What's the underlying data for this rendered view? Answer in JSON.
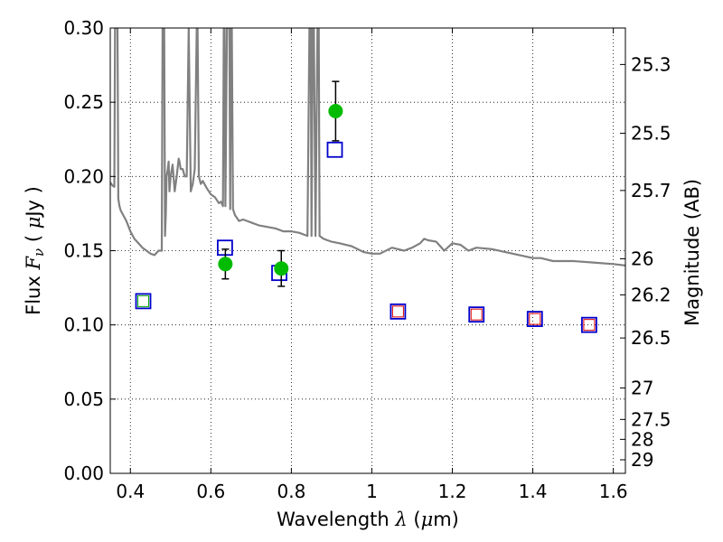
{
  "chart_data": {
    "type": "scatter",
    "xlabel": "Wavelength  λ (μm)",
    "ylabel": "Flux  F_ν  ( μJy )",
    "y2label": "Magnitude (AB)",
    "xlim": [
      0.35,
      1.63
    ],
    "ylim": [
      0.0,
      0.3
    ],
    "grid": true,
    "x_ticks": [
      0.4,
      0.6,
      0.8,
      1.0,
      1.2,
      1.4,
      1.6
    ],
    "x_tick_labels": [
      "0.4",
      "0.6",
      "0.8",
      "1",
      "1.2",
      "1.4",
      "1.6"
    ],
    "y_ticks": [
      0.0,
      0.05,
      0.1,
      0.15,
      0.2,
      0.25,
      0.3
    ],
    "y_tick_labels": [
      "0.00",
      "0.05",
      "0.10",
      "0.15",
      "0.20",
      "0.25",
      "0.30"
    ],
    "y2_ticks": [
      25.3,
      25.5,
      25.7,
      26,
      26.2,
      26.5,
      27,
      27.5,
      28,
      29
    ],
    "y2_tick_labels": [
      "25.3",
      "25.5",
      "25.7",
      "26",
      "26.2",
      "26.5",
      "27",
      "27.5",
      "28",
      "29"
    ],
    "colors": {
      "sed_model": "#808080",
      "observed": "#00bb00",
      "model_box": "#0000cc",
      "box_inner_green": "#00aa00",
      "box_inner_red": "#dd0000",
      "errorbar": "#000000"
    },
    "series": [
      {
        "kind": "line",
        "x": [
          0.35,
          0.355,
          0.36,
          0.362,
          0.364,
          0.366,
          0.368,
          0.37,
          0.373,
          0.376,
          0.38,
          0.39,
          0.4,
          0.41,
          0.42,
          0.43,
          0.44,
          0.45,
          0.46,
          0.47,
          0.478,
          0.48,
          0.484,
          0.486,
          0.488,
          0.49,
          0.493,
          0.495,
          0.497,
          0.5,
          0.505,
          0.51,
          0.515,
          0.52,
          0.522,
          0.525,
          0.53,
          0.535,
          0.54,
          0.545,
          0.55,
          0.555,
          0.56,
          0.565,
          0.567,
          0.57,
          0.575,
          0.58,
          0.59,
          0.6,
          0.61,
          0.62,
          0.625,
          0.63,
          0.632,
          0.634,
          0.636,
          0.64,
          0.642,
          0.644,
          0.646,
          0.648,
          0.65,
          0.652,
          0.655,
          0.66,
          0.67,
          0.68,
          0.69,
          0.7,
          0.72,
          0.74,
          0.76,
          0.78,
          0.8,
          0.82,
          0.84,
          0.845,
          0.848,
          0.85,
          0.853,
          0.856,
          0.86,
          0.865,
          0.868,
          0.87,
          0.88,
          0.9,
          0.92,
          0.95,
          0.98,
          1.0,
          1.02,
          1.05,
          1.08,
          1.1,
          1.12,
          1.13,
          1.14,
          1.16,
          1.18,
          1.2,
          1.22,
          1.24,
          1.26,
          1.3,
          1.35,
          1.4,
          1.42,
          1.45,
          1.5,
          1.55,
          1.6,
          1.63
        ],
        "y": [
          0.196,
          0.194,
          0.193,
          0.3,
          0.3,
          0.3,
          0.3,
          0.185,
          0.18,
          0.177,
          0.175,
          0.17,
          0.163,
          0.158,
          0.155,
          0.152,
          0.15,
          0.148,
          0.147,
          0.15,
          0.15,
          0.3,
          0.3,
          0.16,
          0.175,
          0.2,
          0.205,
          0.21,
          0.19,
          0.2,
          0.208,
          0.19,
          0.2,
          0.212,
          0.21,
          0.205,
          0.205,
          0.2,
          0.2,
          0.3,
          0.19,
          0.195,
          0.205,
          0.3,
          0.3,
          0.2,
          0.195,
          0.197,
          0.192,
          0.188,
          0.186,
          0.182,
          0.183,
          0.18,
          0.3,
          0.3,
          0.18,
          0.3,
          0.3,
          0.3,
          0.3,
          0.178,
          0.3,
          0.3,
          0.178,
          0.174,
          0.17,
          0.171,
          0.17,
          0.169,
          0.167,
          0.166,
          0.165,
          0.163,
          0.163,
          0.162,
          0.16,
          0.3,
          0.3,
          0.16,
          0.3,
          0.3,
          0.16,
          0.3,
          0.3,
          0.16,
          0.158,
          0.156,
          0.155,
          0.153,
          0.149,
          0.148,
          0.148,
          0.152,
          0.15,
          0.152,
          0.155,
          0.158,
          0.157,
          0.156,
          0.15,
          0.155,
          0.154,
          0.15,
          0.152,
          0.151,
          0.148,
          0.145,
          0.145,
          0.143,
          0.143,
          0.142,
          0.141,
          0.14
        ]
      },
      {
        "kind": "observed",
        "x": [
          0.636,
          0.775,
          0.91
        ],
        "y": [
          0.141,
          0.138,
          0.244
        ],
        "yerr": [
          0.01,
          0.012,
          0.02
        ]
      },
      {
        "kind": "model_box",
        "x": [
          0.432,
          0.635,
          0.77,
          0.908,
          1.065,
          1.26,
          1.405,
          1.54
        ],
        "y": [
          0.116,
          0.152,
          0.135,
          0.218,
          0.109,
          0.107,
          0.104,
          0.1
        ],
        "inner": [
          "green",
          "none",
          "none",
          "none",
          "red",
          "red",
          "red",
          "red"
        ]
      }
    ]
  }
}
